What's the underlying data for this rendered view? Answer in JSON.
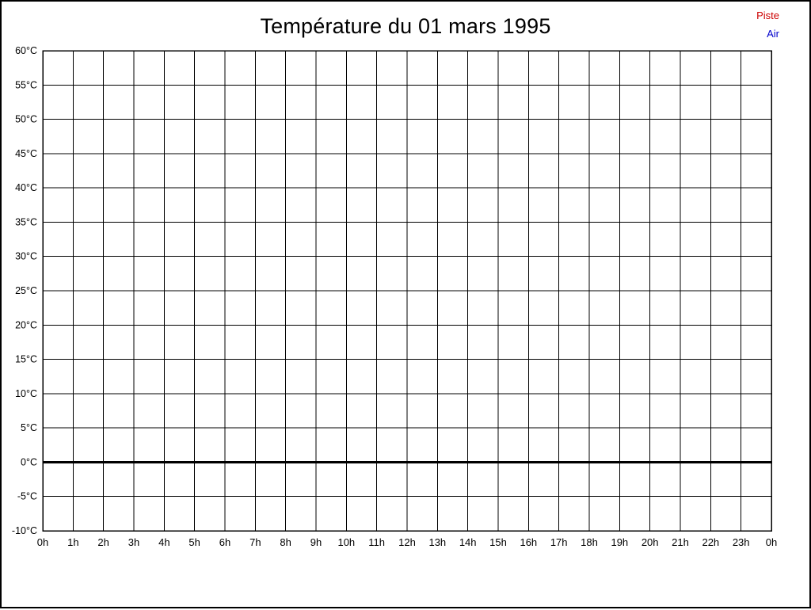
{
  "title": "Température du 01 mars 1995",
  "legend": [
    {
      "label": "Piste",
      "color": "#cc0000"
    },
    {
      "label": "Air",
      "color": "#0000cc"
    }
  ],
  "chart_data": {
    "type": "line",
    "title": "Température du 01 mars 1995",
    "x_tick_labels": [
      "0h",
      "1h",
      "2h",
      "3h",
      "4h",
      "5h",
      "6h",
      "7h",
      "8h",
      "9h",
      "10h",
      "11h",
      "12h",
      "13h",
      "14h",
      "15h",
      "16h",
      "17h",
      "18h",
      "19h",
      "20h",
      "21h",
      "22h",
      "23h",
      "0h"
    ],
    "y_ticks": [
      60,
      55,
      50,
      45,
      40,
      35,
      30,
      25,
      20,
      15,
      10,
      5,
      0,
      -5,
      -10
    ],
    "y_unit": "°C",
    "ylim": [
      -10,
      60
    ],
    "grid": true,
    "zero_line_value": 0,
    "legend_position": "top-right",
    "series": [
      {
        "name": "Piste",
        "color": "#cc0000",
        "values": []
      },
      {
        "name": "Air",
        "color": "#0000cc",
        "values": []
      }
    ]
  }
}
